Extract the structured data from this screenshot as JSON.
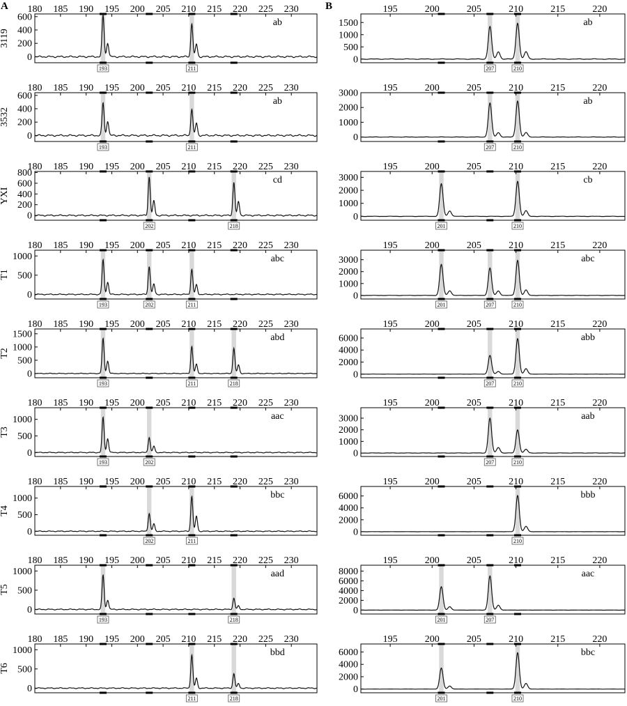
{
  "figure": {
    "panel_labels": [
      "A",
      "B"
    ],
    "colors": {
      "trace": "#111111",
      "highlight": "#d9d9d9",
      "axis": "#000000"
    }
  },
  "chart_data": [
    {
      "type": "line",
      "panel": "A",
      "sample": "3119",
      "genotype": "ab",
      "xlim": [
        180,
        235
      ],
      "xticks": [
        180,
        185,
        190,
        195,
        200,
        205,
        210,
        215,
        220,
        225,
        230
      ],
      "ylim": [
        -90,
        640
      ],
      "yticks": [
        0,
        200,
        400,
        600
      ],
      "bins": [
        193.3,
        202.3,
        210.6,
        218.8
      ],
      "alleles": [
        {
          "label": "193",
          "x": 193.3
        },
        {
          "label": "211",
          "x": 210.6
        }
      ],
      "peaks": [
        {
          "x": 193.3,
          "y": 620
        },
        {
          "x": 194.2,
          "y": 210
        },
        {
          "x": 210.6,
          "y": 500
        },
        {
          "x": 211.5,
          "y": 190
        }
      ]
    },
    {
      "type": "line",
      "panel": "A",
      "sample": "3532",
      "genotype": "ab",
      "xlim": [
        180,
        235
      ],
      "xticks": [
        180,
        185,
        190,
        195,
        200,
        205,
        210,
        215,
        220,
        225,
        230
      ],
      "ylim": [
        -90,
        640
      ],
      "yticks": [
        0,
        200,
        400,
        600
      ],
      "bins": [
        193.3,
        202.3,
        210.6,
        218.8
      ],
      "alleles": [
        {
          "label": "193",
          "x": 193.3
        },
        {
          "label": "211",
          "x": 210.6
        }
      ],
      "peaks": [
        {
          "x": 193.3,
          "y": 490
        },
        {
          "x": 194.2,
          "y": 220
        },
        {
          "x": 210.6,
          "y": 400
        },
        {
          "x": 211.5,
          "y": 185
        }
      ]
    },
    {
      "type": "line",
      "panel": "A",
      "sample": "YXI",
      "genotype": "cd",
      "xlim": [
        180,
        235
      ],
      "xticks": [
        180,
        185,
        190,
        195,
        200,
        205,
        210,
        215,
        220,
        225,
        230
      ],
      "ylim": [
        -90,
        820
      ],
      "yticks": [
        0,
        200,
        400,
        600,
        800
      ],
      "bins": [
        193.3,
        202.3,
        210.6,
        218.8
      ],
      "alleles": [
        {
          "label": "202",
          "x": 202.3
        },
        {
          "label": "218",
          "x": 218.8
        }
      ],
      "peaks": [
        {
          "x": 202.3,
          "y": 720
        },
        {
          "x": 203.2,
          "y": 270
        },
        {
          "x": 218.8,
          "y": 620
        },
        {
          "x": 219.7,
          "y": 260
        }
      ]
    },
    {
      "type": "line",
      "panel": "A",
      "sample": "T1",
      "genotype": "abc",
      "xlim": [
        180,
        235
      ],
      "xticks": [
        180,
        185,
        190,
        195,
        200,
        205,
        210,
        215,
        220,
        225,
        230
      ],
      "ylim": [
        -120,
        1150
      ],
      "yticks": [
        0,
        500,
        1000
      ],
      "bins": [
        193.3,
        202.3,
        210.6,
        218.8
      ],
      "alleles": [
        {
          "label": "193",
          "x": 193.3
        },
        {
          "label": "202",
          "x": 202.3
        },
        {
          "label": "211",
          "x": 210.6
        }
      ],
      "peaks": [
        {
          "x": 193.3,
          "y": 900
        },
        {
          "x": 194.2,
          "y": 320
        },
        {
          "x": 202.3,
          "y": 730
        },
        {
          "x": 203.2,
          "y": 270
        },
        {
          "x": 210.6,
          "y": 650
        },
        {
          "x": 211.5,
          "y": 250
        }
      ]
    },
    {
      "type": "line",
      "panel": "A",
      "sample": "T2",
      "genotype": "abd",
      "xlim": [
        180,
        235
      ],
      "xticks": [
        180,
        185,
        190,
        195,
        200,
        205,
        210,
        215,
        220,
        225,
        230
      ],
      "ylim": [
        -160,
        1680
      ],
      "yticks": [
        0,
        500,
        1000,
        1500
      ],
      "bins": [
        193.3,
        202.3,
        210.6,
        218.8
      ],
      "alleles": [
        {
          "label": "193",
          "x": 193.3
        },
        {
          "label": "211",
          "x": 210.6
        },
        {
          "label": "218",
          "x": 218.8
        }
      ],
      "peaks": [
        {
          "x": 193.3,
          "y": 1320
        },
        {
          "x": 194.2,
          "y": 470
        },
        {
          "x": 210.6,
          "y": 1020
        },
        {
          "x": 211.5,
          "y": 350
        },
        {
          "x": 218.8,
          "y": 960
        },
        {
          "x": 219.7,
          "y": 330
        }
      ]
    },
    {
      "type": "line",
      "panel": "A",
      "sample": "T3",
      "genotype": "aac",
      "xlim": [
        180,
        235
      ],
      "xticks": [
        180,
        185,
        190,
        195,
        200,
        205,
        210,
        215,
        220,
        225,
        230
      ],
      "ylim": [
        -120,
        1350
      ],
      "yticks": [
        0,
        500,
        1000
      ],
      "bins": [
        193.3,
        202.3,
        210.6,
        218.8
      ],
      "alleles": [
        {
          "label": "193",
          "x": 193.3
        },
        {
          "label": "202",
          "x": 202.3
        }
      ],
      "peaks": [
        {
          "x": 193.3,
          "y": 1060
        },
        {
          "x": 194.2,
          "y": 420
        },
        {
          "x": 202.3,
          "y": 460
        },
        {
          "x": 203.2,
          "y": 190
        }
      ]
    },
    {
      "type": "line",
      "panel": "A",
      "sample": "T4",
      "genotype": "bbc",
      "xlim": [
        180,
        235
      ],
      "xticks": [
        180,
        185,
        190,
        195,
        200,
        205,
        210,
        215,
        220,
        225,
        230
      ],
      "ylim": [
        -120,
        1350
      ],
      "yticks": [
        0,
        500,
        1000
      ],
      "bins": [
        193.3,
        202.3,
        210.6,
        218.8
      ],
      "alleles": [
        {
          "label": "202",
          "x": 202.3
        },
        {
          "label": "211",
          "x": 210.6
        }
      ],
      "peaks": [
        {
          "x": 202.3,
          "y": 540
        },
        {
          "x": 203.2,
          "y": 220
        },
        {
          "x": 210.6,
          "y": 1060
        },
        {
          "x": 211.5,
          "y": 460
        }
      ]
    },
    {
      "type": "line",
      "panel": "A",
      "sample": "T5",
      "genotype": "aad",
      "xlim": [
        180,
        235
      ],
      "xticks": [
        180,
        185,
        190,
        195,
        200,
        205,
        210,
        215,
        220,
        225,
        230
      ],
      "ylim": [
        -120,
        1150
      ],
      "yticks": [
        0,
        500,
        1000
      ],
      "bins": [
        193.3,
        202.3,
        210.6,
        218.8
      ],
      "alleles": [
        {
          "label": "193",
          "x": 193.3
        },
        {
          "label": "218",
          "x": 218.8
        }
      ],
      "peaks": [
        {
          "x": 193.3,
          "y": 900
        },
        {
          "x": 194.2,
          "y": 250
        },
        {
          "x": 218.8,
          "y": 290
        },
        {
          "x": 219.7,
          "y": 90
        }
      ]
    },
    {
      "type": "line",
      "panel": "A",
      "sample": "T6",
      "genotype": "bbd",
      "xlim": [
        180,
        235
      ],
      "xticks": [
        180,
        185,
        190,
        195,
        200,
        205,
        210,
        215,
        220,
        225,
        230
      ],
      "ylim": [
        -120,
        1150
      ],
      "yticks": [
        0,
        500,
        1000
      ],
      "bins": [
        193.3,
        202.3,
        210.6,
        218.8
      ],
      "alleles": [
        {
          "label": "211",
          "x": 210.6
        },
        {
          "label": "218",
          "x": 218.8
        }
      ],
      "peaks": [
        {
          "x": 210.6,
          "y": 870
        },
        {
          "x": 211.5,
          "y": 260
        },
        {
          "x": 218.8,
          "y": 380
        },
        {
          "x": 219.7,
          "y": 120
        }
      ]
    },
    {
      "type": "line",
      "panel": "B",
      "sample": "3119",
      "genotype": "ab",
      "xlim": [
        191.5,
        223
      ],
      "xticks": [
        195,
        200,
        205,
        210,
        215,
        220
      ],
      "ylim": [
        -150,
        1850
      ],
      "yticks": [
        0,
        500,
        1000,
        1500
      ],
      "bins": [
        201.1,
        206.9,
        210.2
      ],
      "alleles": [
        {
          "label": "207",
          "x": 206.9
        },
        {
          "label": "210",
          "x": 210.2
        }
      ],
      "peaks": [
        {
          "x": 206.9,
          "y": 1340
        },
        {
          "x": 207.9,
          "y": 300
        },
        {
          "x": 210.2,
          "y": 1480
        },
        {
          "x": 211.2,
          "y": 300
        }
      ]
    },
    {
      "type": "line",
      "panel": "B",
      "sample": "3532",
      "genotype": "ab",
      "xlim": [
        191.5,
        223
      ],
      "xticks": [
        195,
        200,
        205,
        210,
        215,
        220
      ],
      "ylim": [
        -300,
        3000
      ],
      "yticks": [
        0,
        1000,
        2000,
        3000
      ],
      "bins": [
        201.1,
        206.9,
        210.2
      ],
      "alleles": [
        {
          "label": "207",
          "x": 206.9
        },
        {
          "label": "210",
          "x": 210.2
        }
      ],
      "peaks": [
        {
          "x": 206.9,
          "y": 2300
        },
        {
          "x": 207.9,
          "y": 300
        },
        {
          "x": 210.2,
          "y": 2450
        },
        {
          "x": 211.2,
          "y": 300
        }
      ]
    },
    {
      "type": "line",
      "panel": "B",
      "sample": "YXI",
      "genotype": "cb",
      "xlim": [
        191.5,
        223
      ],
      "xticks": [
        195,
        200,
        205,
        210,
        215,
        220
      ],
      "ylim": [
        -300,
        3450
      ],
      "yticks": [
        0,
        1000,
        2000,
        3000
      ],
      "bins": [
        201.1,
        206.9,
        210.2
      ],
      "alleles": [
        {
          "label": "201",
          "x": 201.1
        },
        {
          "label": "210",
          "x": 210.2
        }
      ],
      "peaks": [
        {
          "x": 201.1,
          "y": 2500
        },
        {
          "x": 202.1,
          "y": 420
        },
        {
          "x": 210.2,
          "y": 2700
        },
        {
          "x": 211.2,
          "y": 430
        }
      ]
    },
    {
      "type": "line",
      "panel": "B",
      "sample": "T1",
      "genotype": "abc",
      "xlim": [
        191.5,
        223
      ],
      "xticks": [
        195,
        200,
        205,
        210,
        215,
        220
      ],
      "ylim": [
        -300,
        3800
      ],
      "yticks": [
        0,
        1000,
        2000,
        3000
      ],
      "bins": [
        201.1,
        206.9,
        210.2
      ],
      "alleles": [
        {
          "label": "201",
          "x": 201.1
        },
        {
          "label": "207",
          "x": 206.9
        },
        {
          "label": "210",
          "x": 210.2
        }
      ],
      "peaks": [
        {
          "x": 201.1,
          "y": 2600
        },
        {
          "x": 202.1,
          "y": 400
        },
        {
          "x": 206.9,
          "y": 2300
        },
        {
          "x": 207.9,
          "y": 380
        },
        {
          "x": 210.2,
          "y": 2950
        },
        {
          "x": 211.2,
          "y": 450
        }
      ]
    },
    {
      "type": "line",
      "panel": "B",
      "sample": "T2",
      "genotype": "abb",
      "xlim": [
        191.5,
        223
      ],
      "xticks": [
        195,
        200,
        205,
        210,
        215,
        220
      ],
      "ylim": [
        -600,
        7500
      ],
      "yticks": [
        0,
        2000,
        4000,
        6000
      ],
      "bins": [
        201.1,
        206.9,
        210.2
      ],
      "alleles": [
        {
          "label": "207",
          "x": 206.9
        },
        {
          "label": "210",
          "x": 210.2
        }
      ],
      "peaks": [
        {
          "x": 206.9,
          "y": 3100
        },
        {
          "x": 207.9,
          "y": 450
        },
        {
          "x": 210.2,
          "y": 5900
        },
        {
          "x": 211.2,
          "y": 900
        }
      ]
    },
    {
      "type": "line",
      "panel": "B",
      "sample": "T3",
      "genotype": "aab",
      "xlim": [
        191.5,
        223
      ],
      "xticks": [
        195,
        200,
        205,
        210,
        215,
        220
      ],
      "ylim": [
        -300,
        3900
      ],
      "yticks": [
        0,
        1000,
        2000,
        3000
      ],
      "bins": [
        201.1,
        206.9,
        210.2
      ],
      "alleles": [
        {
          "label": "207",
          "x": 206.9
        },
        {
          "label": "210",
          "x": 210.2
        }
      ],
      "peaks": [
        {
          "x": 206.9,
          "y": 3000
        },
        {
          "x": 207.9,
          "y": 480
        },
        {
          "x": 210.2,
          "y": 2000
        },
        {
          "x": 211.2,
          "y": 320
        }
      ]
    },
    {
      "type": "line",
      "panel": "B",
      "sample": "T4",
      "genotype": "bbb",
      "xlim": [
        191.5,
        223
      ],
      "xticks": [
        195,
        200,
        205,
        210,
        215,
        220
      ],
      "ylim": [
        -600,
        7600
      ],
      "yticks": [
        0,
        2000,
        4000,
        6000
      ],
      "bins": [
        201.1,
        206.9,
        210.2
      ],
      "alleles": [
        {
          "label": "210",
          "x": 210.2
        }
      ],
      "peaks": [
        {
          "x": 210.2,
          "y": 6100
        },
        {
          "x": 211.2,
          "y": 900
        }
      ]
    },
    {
      "type": "line",
      "panel": "B",
      "sample": "T5",
      "genotype": "aac",
      "xlim": [
        191.5,
        223
      ],
      "xticks": [
        195,
        200,
        205,
        210,
        215,
        220
      ],
      "ylim": [
        -800,
        9200
      ],
      "yticks": [
        0,
        2000,
        4000,
        6000,
        8000
      ],
      "bins": [
        201.1,
        206.9,
        210.2
      ],
      "alleles": [
        {
          "label": "201",
          "x": 201.1
        },
        {
          "label": "207",
          "x": 206.9
        }
      ],
      "peaks": [
        {
          "x": 201.1,
          "y": 4800
        },
        {
          "x": 202.1,
          "y": 700
        },
        {
          "x": 206.9,
          "y": 7000
        },
        {
          "x": 207.9,
          "y": 1000
        }
      ]
    },
    {
      "type": "line",
      "panel": "B",
      "sample": "T6",
      "genotype": "bbc",
      "xlim": [
        191.5,
        223
      ],
      "xticks": [
        195,
        200,
        205,
        210,
        215,
        220
      ],
      "ylim": [
        -600,
        7300
      ],
      "yticks": [
        0,
        2000,
        4000,
        6000
      ],
      "bins": [
        201.1,
        206.9,
        210.2
      ],
      "alleles": [
        {
          "label": "201",
          "x": 201.1
        },
        {
          "label": "210",
          "x": 210.2
        }
      ],
      "peaks": [
        {
          "x": 201.1,
          "y": 3400
        },
        {
          "x": 202.1,
          "y": 500
        },
        {
          "x": 210.2,
          "y": 5900
        },
        {
          "x": 211.2,
          "y": 900
        }
      ]
    }
  ]
}
